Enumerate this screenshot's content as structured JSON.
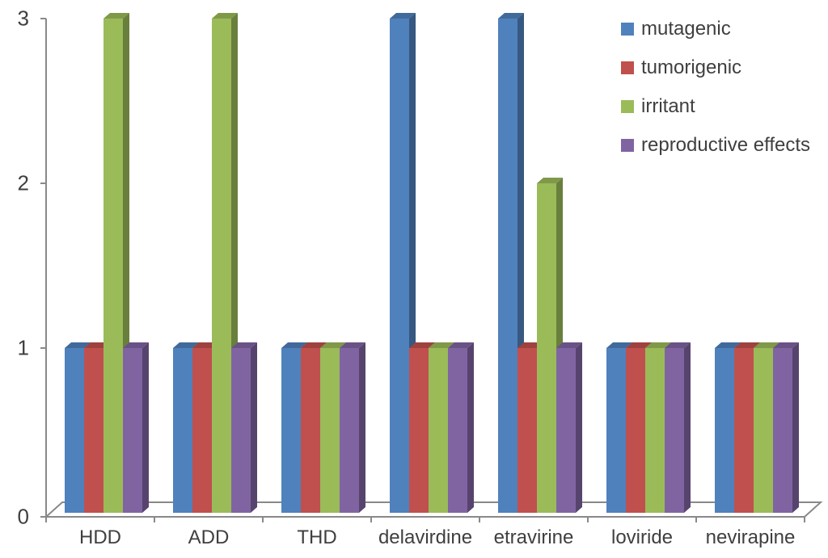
{
  "chart_data": {
    "type": "bar",
    "subtype": "3d-clustered-column",
    "title": "",
    "xlabel": "",
    "ylabel": "",
    "categories": [
      "HDD",
      "ADD",
      "THD",
      "delavirdine",
      "etravirine",
      "loviride",
      "nevirapine"
    ],
    "series": [
      {
        "name": "mutagenic",
        "color": "#4F81BD",
        "values": [
          1,
          1,
          1,
          3,
          3,
          1,
          1
        ]
      },
      {
        "name": "tumorigenic",
        "color": "#C0504D",
        "values": [
          1,
          1,
          1,
          1,
          1,
          1,
          1
        ]
      },
      {
        "name": "irritant",
        "color": "#9BBB59",
        "values": [
          3,
          3,
          1,
          1,
          2,
          1,
          1
        ]
      },
      {
        "name": "reproductive effects",
        "color": "#8064A2",
        "values": [
          1,
          1,
          1,
          1,
          1,
          1,
          1
        ]
      }
    ],
    "yticks": [
      0,
      1,
      2,
      3
    ],
    "ylim": [
      0,
      3
    ],
    "grid": false,
    "legend_position": "top-right",
    "axis_color": "#898989",
    "text_color": "#3F3F3F",
    "background": "#FFFFFF"
  }
}
